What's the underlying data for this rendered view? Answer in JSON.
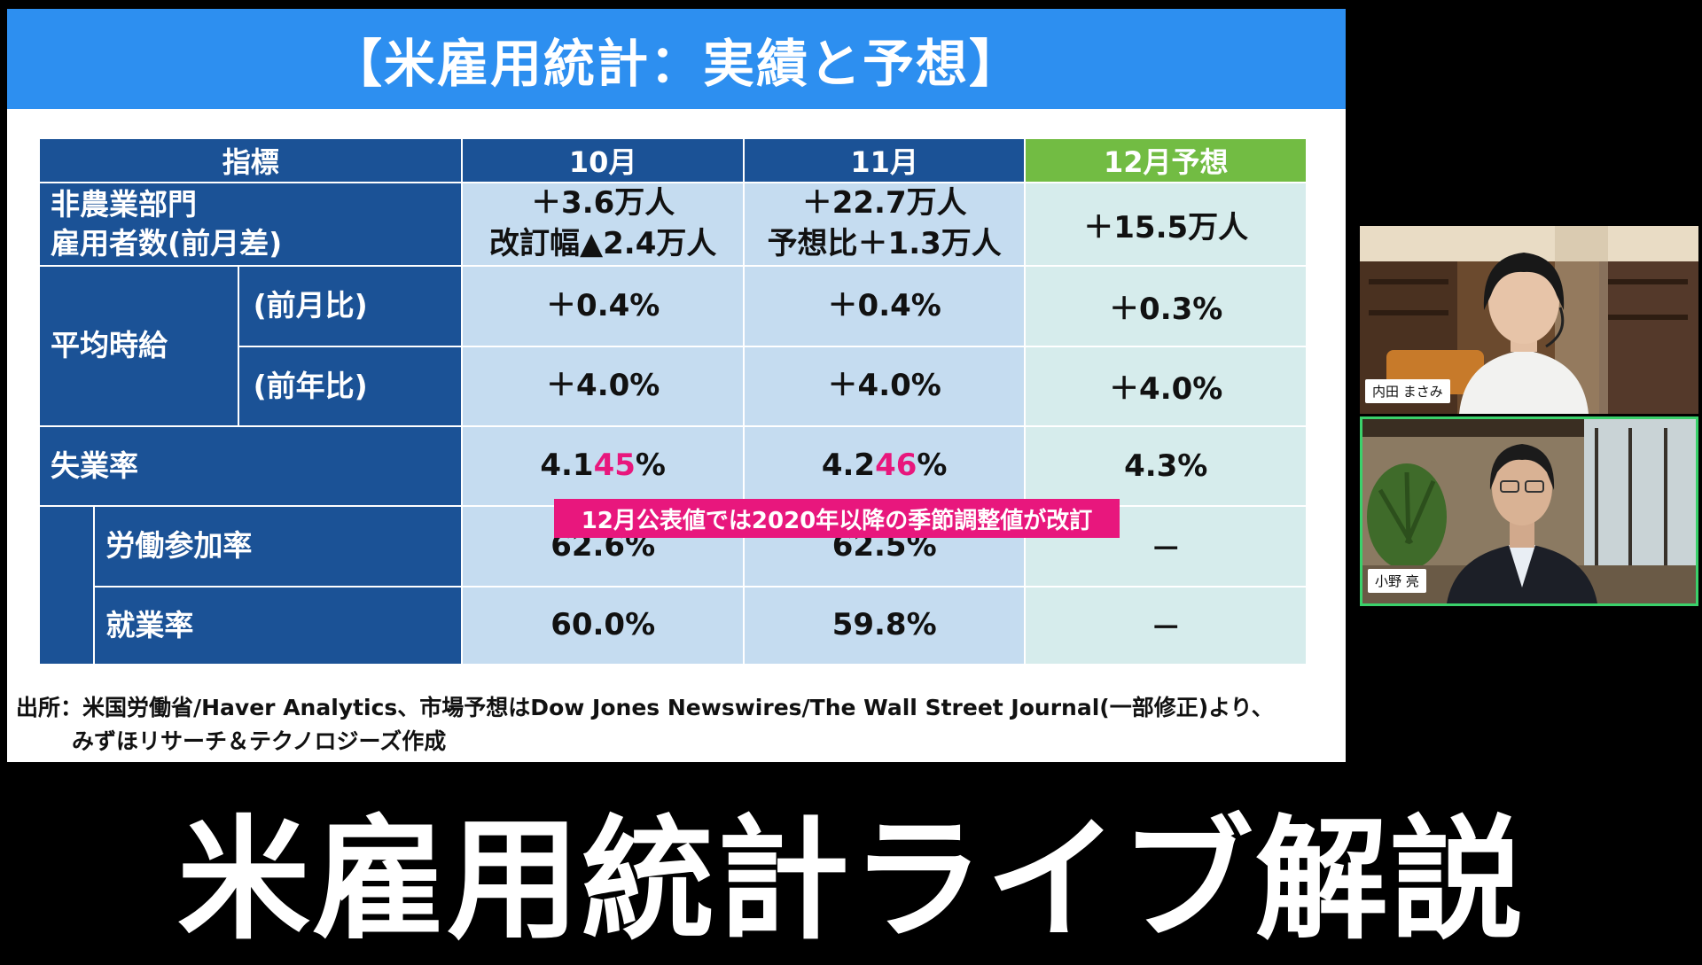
{
  "slide": {
    "title": "【米雇用統計：実績と予想】",
    "table": {
      "headers": {
        "indicator": "指標",
        "oct": "10月",
        "nov": "11月",
        "dec_forecast": "12月予想"
      },
      "rows": {
        "nfp": {
          "label_l1": "非農業部門",
          "label_l2": "雇用者数(前月差)",
          "oct_l1": "＋3.6万人",
          "oct_l2": "改訂幅▲2.4万人",
          "nov_l1": "＋22.7万人",
          "nov_l2": "予想比＋1.3万人",
          "dec": "＋15.5万人"
        },
        "wage": {
          "label": "平均時給",
          "mom": {
            "label": "(前月比)",
            "oct": "＋0.4%",
            "nov": "＋0.4%",
            "dec": "＋0.3%"
          },
          "yoy": {
            "label": "(前年比)",
            "oct": "＋4.0%",
            "nov": "＋4.0%",
            "dec": "＋4.0%"
          }
        },
        "unemployment": {
          "label": "失業率",
          "oct_pre": "4.1",
          "oct_hl": "45",
          "oct_post": "%",
          "nov_pre": "4.2",
          "nov_hl": "46",
          "nov_post": "%",
          "dec": "4.3%"
        },
        "participation": {
          "label": "労働参加率",
          "oct": "62.6%",
          "nov": "62.5%",
          "dec": "－"
        },
        "employment": {
          "label": "就業率",
          "oct": "60.0%",
          "nov": "59.8%",
          "dec": "－"
        }
      }
    },
    "note": "12月公表値では2020年以降の季節調整値が改訂",
    "source_l1": "出所：米国労働省/Haver Analytics、市場予想はDow Jones Newswires/The Wall Street Journal(一部修正)より、",
    "source_l2": "みずほリサーチ＆テクノロジーズ作成"
  },
  "participants": [
    {
      "name": "内田 まさみ"
    },
    {
      "name": "小野 亮"
    }
  ],
  "caption": "米雇用統計ライブ解説",
  "colors": {
    "title_bg": "#2d8ff0",
    "header_bg": "#1b5296",
    "forecast_header_bg": "#72bc43",
    "cell_bg": "#c5dcf0",
    "forecast_cell_bg": "#d6ecec",
    "highlight": "#e8177d",
    "active_speaker": "#3ad16b"
  }
}
